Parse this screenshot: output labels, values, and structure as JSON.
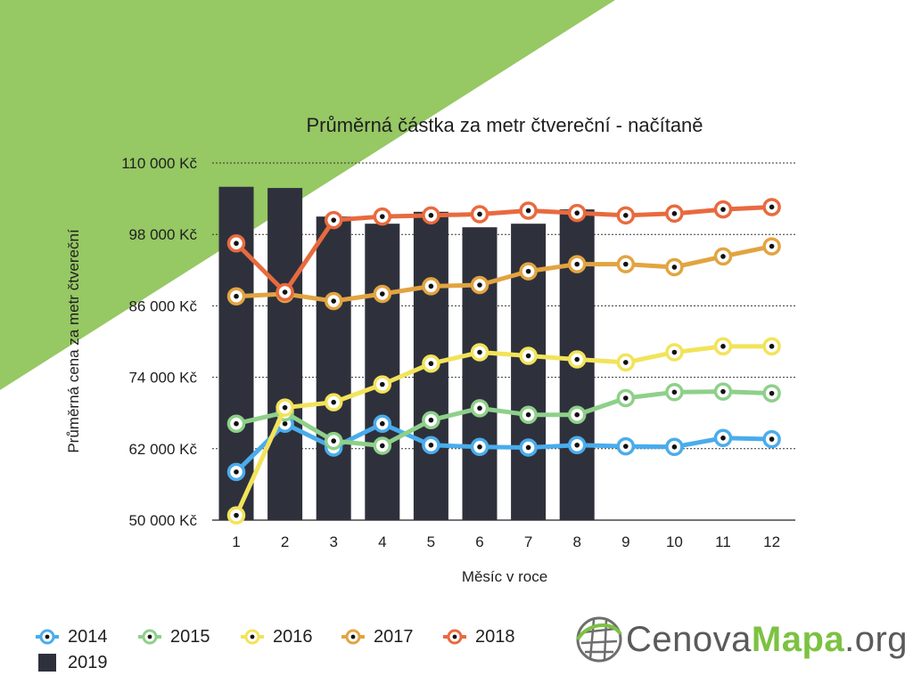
{
  "chart_data": {
    "type": "line",
    "title": "Průměrná částka za metr čtvereční - načítaně",
    "xlabel": "Měsíc v roce",
    "ylabel": "Průměrná cena za metr čtvereční",
    "categories": [
      "1",
      "2",
      "3",
      "4",
      "5",
      "6",
      "7",
      "8",
      "9",
      "10",
      "11",
      "12"
    ],
    "y_ticks": [
      "50 000 Kč",
      "62 000 Kč",
      "74 000 Kč",
      "86 000 Kč",
      "98 000 Kč",
      "110 000 Kč"
    ],
    "ylim": [
      50000,
      110000
    ],
    "grid": true,
    "bar_series": {
      "name": "2019",
      "color": "#2e313b",
      "values": [
        106000,
        105800,
        101000,
        99800,
        101800,
        99200,
        99800,
        102200
      ]
    },
    "series": [
      {
        "name": "2014",
        "color": "#4aacec",
        "values": [
          58100,
          66200,
          62200,
          66200,
          62600,
          62300,
          62200,
          62600,
          62400,
          62300,
          63800,
          63600
        ]
      },
      {
        "name": "2015",
        "color": "#8ed08a",
        "values": [
          66200,
          68100,
          63300,
          62500,
          66800,
          68800,
          67700,
          67700,
          70500,
          71500,
          71600,
          71300
        ]
      },
      {
        "name": "2016",
        "color": "#f2e35a",
        "values": [
          50800,
          68900,
          69800,
          72800,
          76300,
          78200,
          77600,
          77000,
          76500,
          78200,
          79200,
          79200
        ]
      },
      {
        "name": "2017",
        "color": "#e2a441",
        "values": [
          87600,
          88000,
          86800,
          88000,
          89300,
          89500,
          91800,
          93000,
          93000,
          92500,
          94300,
          96000
        ]
      },
      {
        "name": "2018",
        "color": "#e86a3f",
        "values": [
          96500,
          88300,
          100400,
          101000,
          101200,
          101400,
          102000,
          101600,
          101200,
          101500,
          102200,
          102600
        ]
      }
    ],
    "legend_position": "bottom-left"
  },
  "brand": {
    "logo_part1": "Cenova",
    "logo_part2": "Mapa",
    "logo_part3": ".org",
    "accent_color": "#7cc242",
    "logo_icon": "globe-grid-icon"
  }
}
